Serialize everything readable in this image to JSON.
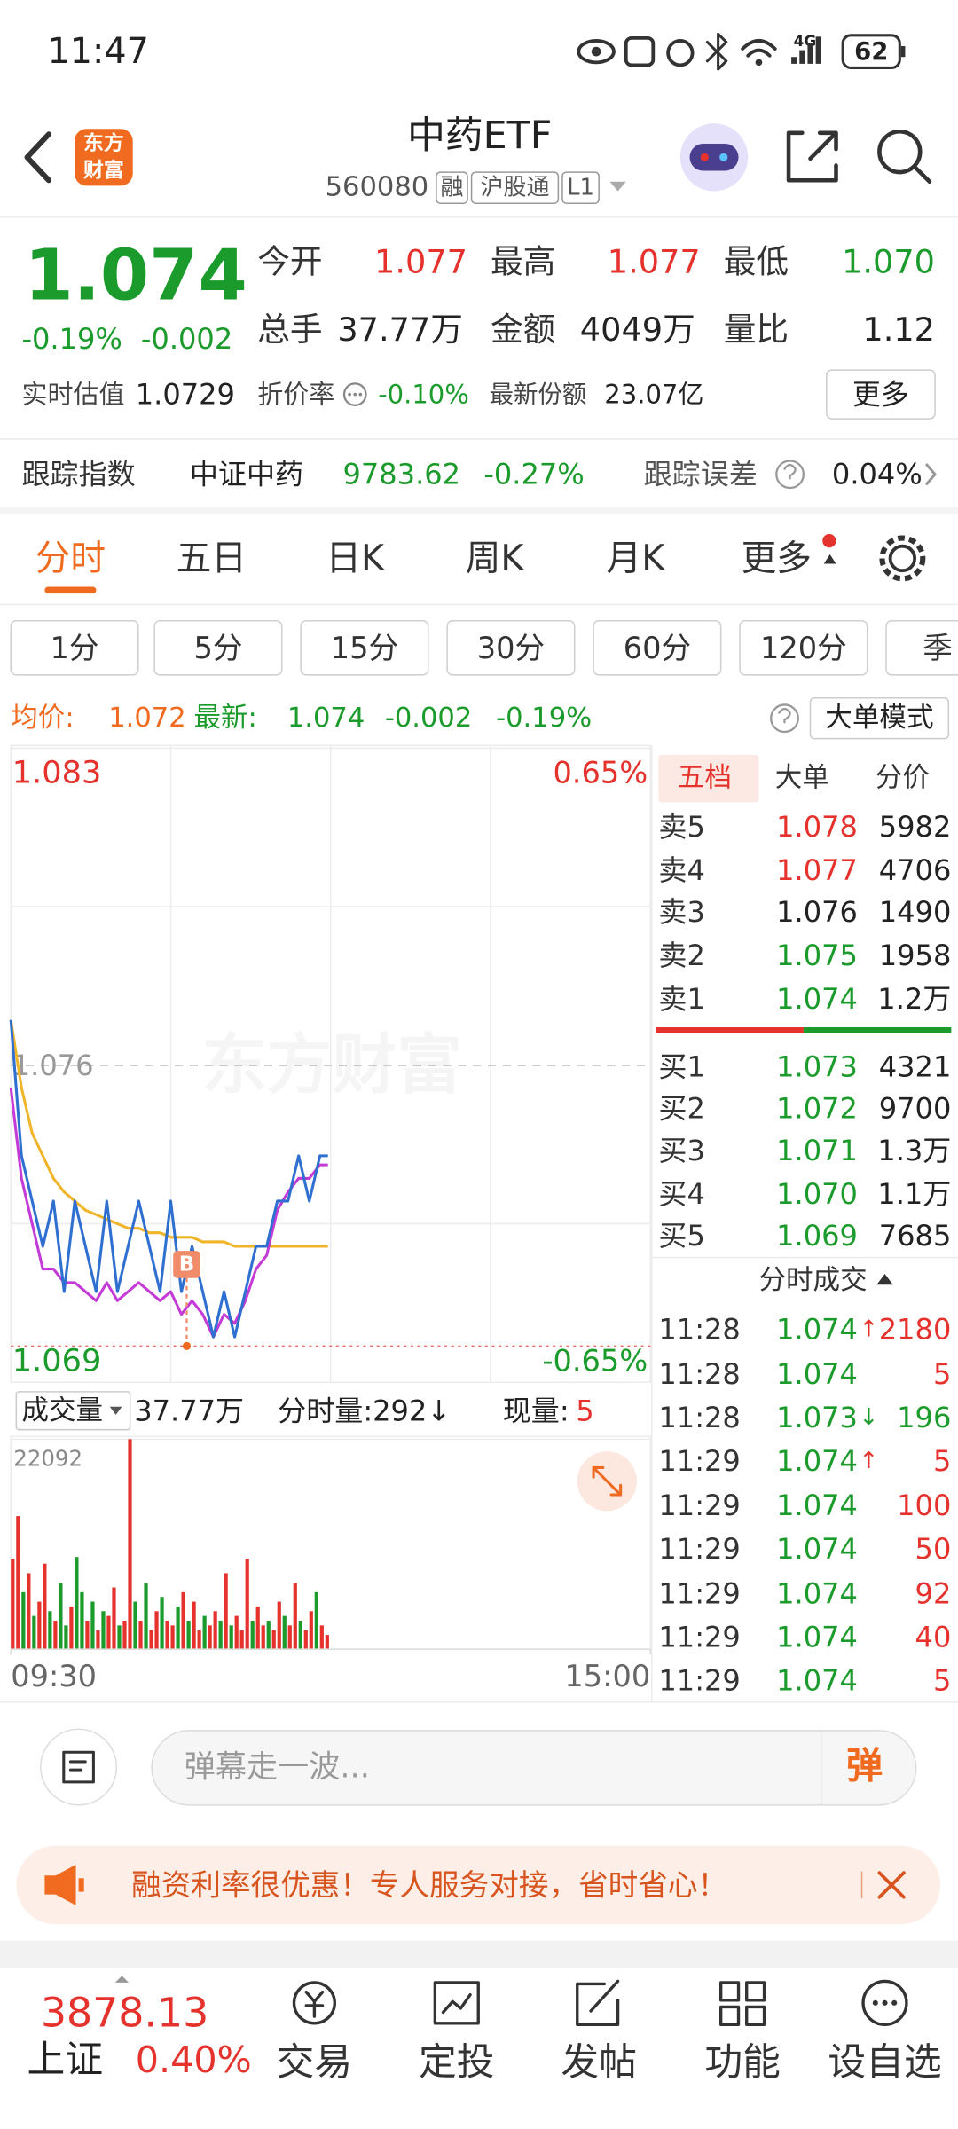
{
  "status_bar": {
    "time": "11:47",
    "network": "4G",
    "battery": "62"
  },
  "header": {
    "logo": [
      "东方",
      "财富"
    ],
    "title": "中药ETF",
    "code": "560080",
    "tags": [
      "融",
      "沪股通",
      "L1"
    ]
  },
  "quote": {
    "price": "1.074",
    "change_pct": "-0.19%",
    "change": "-0.002",
    "stats": [
      [
        "今开",
        "1.077"
      ],
      [
        "最高",
        "1.077"
      ],
      [
        "最低",
        "1.070"
      ],
      [
        "总手",
        "37.77万"
      ],
      [
        "金额",
        "4049万"
      ],
      [
        "量比",
        "1.12"
      ]
    ],
    "estimate_label": "实时估值",
    "estimate": "1.0729",
    "discount_label": "折价率",
    "discount": "-0.10%",
    "shares_label": "最新份额",
    "shares": "23.07亿",
    "more": "更多"
  },
  "tracking": {
    "label": "跟踪指数",
    "index": "中证中药",
    "value": "9783.62",
    "change": "-0.27%",
    "error_label": "跟踪误差",
    "error": "0.04%"
  },
  "tabs": [
    "分时",
    "五日",
    "日K",
    "周K",
    "月K",
    "更多"
  ],
  "intervals": [
    "1分",
    "5分",
    "15分",
    "30分",
    "60分",
    "120分",
    "季"
  ],
  "summary": {
    "avg_label": "均价:",
    "avg": "1.072",
    "latest_label": "最新:",
    "latest": "1.074",
    "change": "-0.002",
    "change_pct": "-0.19%",
    "mode": "大单模式"
  },
  "watermark": "东方财富",
  "chart_data": [
    {
      "type": "line",
      "x": [
        0,
        4,
        8,
        12,
        16,
        20,
        24,
        28,
        32,
        36,
        40,
        44,
        48,
        52,
        56,
        60,
        64,
        68,
        72,
        76,
        80,
        84,
        88,
        92,
        96,
        100,
        104,
        108,
        112,
        116,
        119
      ],
      "series": [
        {
          "color": "#2f6fd0",
          "values": [
            1.077,
            1.074,
            1.073,
            1.072,
            1.073,
            1.071,
            1.073,
            1.072,
            1.071,
            1.073,
            1.071,
            1.072,
            1.073,
            1.072,
            1.071,
            1.073,
            1.071,
            1.072,
            1.071,
            1.07,
            1.071,
            1.07,
            1.071,
            1.072,
            1.072,
            1.073,
            1.073,
            1.074,
            1.073,
            1.074,
            1.074
          ]
        },
        {
          "color": "#f0b429",
          "values": [
            1.077,
            1.0755,
            1.0745,
            1.074,
            1.0735,
            1.0732,
            1.073,
            1.0728,
            1.0727,
            1.0726,
            1.0725,
            1.0724,
            1.0724,
            1.0723,
            1.0723,
            1.0722,
            1.0722,
            1.0722,
            1.0721,
            1.0721,
            1.0721,
            1.072,
            1.072,
            1.072,
            1.072,
            1.072,
            1.072,
            1.072,
            1.072,
            1.072,
            1.072
          ]
        },
        {
          "color": "#c43ad6",
          "values": [
            1.0755,
            1.0735,
            1.0725,
            1.0715,
            1.0715,
            1.0712,
            1.0712,
            1.071,
            1.0708,
            1.0712,
            1.0708,
            1.071,
            1.0712,
            1.071,
            1.0708,
            1.071,
            1.0705,
            1.0708,
            1.0705,
            1.07,
            1.0705,
            1.0703,
            1.0708,
            1.0715,
            1.0718,
            1.0728,
            1.0732,
            1.0735,
            1.0735,
            1.0738,
            1.0738
          ]
        }
      ],
      "xlim": [
        0,
        240
      ],
      "ylim": [
        1.069,
        1.083
      ],
      "yticks": [
        1.069,
        1.076,
        1.083
      ],
      "y2lim": [
        -0.65,
        0.65
      ],
      "y2ticks": [
        {
          "value": -0.65,
          "label": "-0.65%"
        },
        {
          "value": 0.65,
          "label": "0.65%"
        }
      ],
      "annotations": [
        {
          "label": "B",
          "x": 66,
          "y": 1.0716
        }
      ],
      "reference_lines": [
        1.0698
      ]
    },
    {
      "type": "bar",
      "x": [
        0,
        2,
        4,
        6,
        8,
        10,
        12,
        14,
        16,
        18,
        20,
        22,
        24,
        26,
        28,
        30,
        32,
        34,
        36,
        38,
        40,
        42,
        44,
        46,
        48,
        50,
        52,
        54,
        56,
        58,
        60,
        62,
        64,
        66,
        68,
        70,
        72,
        74,
        76,
        78,
        80,
        82,
        84,
        86,
        88,
        90,
        92,
        94,
        96,
        98,
        100,
        102,
        104,
        106,
        108,
        110,
        112,
        114,
        116,
        118
      ],
      "values": [
        9500,
        14000,
        6000,
        8000,
        3500,
        5000,
        9000,
        4000,
        3000,
        7000,
        2500,
        4500,
        9700,
        6000,
        3000,
        5000,
        2000,
        4000,
        3500,
        6500,
        2500,
        3000,
        22092,
        5000,
        3000,
        7000,
        2000,
        4000,
        5500,
        3000,
        2500,
        4500,
        6000,
        3000,
        5000,
        2000,
        3500,
        2500,
        4000,
        3000,
        8000,
        2500,
        3500,
        2000,
        9500,
        3000,
        4500,
        2500,
        3000,
        2000,
        5000,
        3500,
        2500,
        7000,
        3000,
        2000,
        4000,
        6000,
        2500,
        1500
      ],
      "colors": [
        "#e5322d",
        "#e5322d",
        "#1b9b2b",
        "#e5322d",
        "#1b9b2b",
        "#e5322d",
        "#e5322d",
        "#1b9b2b",
        "#e5322d",
        "#1b9b2b",
        "#1b9b2b",
        "#e5322d",
        "#1b9b2b",
        "#1b9b2b",
        "#e5322d",
        "#1b9b2b",
        "#e5322d",
        "#1b9b2b",
        "#e5322d",
        "#e5322d",
        "#1b9b2b",
        "#e5322d",
        "#e5322d",
        "#1b9b2b",
        "#e5322d",
        "#1b9b2b",
        "#e5322d",
        "#e5322d",
        "#1b9b2b",
        "#e5322d",
        "#e5322d",
        "#1b9b2b",
        "#e5322d",
        "#1b9b2b",
        "#e5322d",
        "#e5322d",
        "#1b9b2b",
        "#e5322d",
        "#e5322d",
        "#1b9b2b",
        "#e5322d",
        "#1b9b2b",
        "#e5322d",
        "#e5322d",
        "#e5322d",
        "#1b9b2b",
        "#e5322d",
        "#e5322d",
        "#1b9b2b",
        "#e5322d",
        "#e5322d",
        "#1b9b2b",
        "#e5322d",
        "#e5322d",
        "#1b9b2b",
        "#e5322d",
        "#e5322d",
        "#1b9b2b",
        "#e5322d",
        "#e5322d"
      ],
      "xlim": [
        0,
        240
      ],
      "xticks": [
        {
          "value": 0,
          "label": "09:30"
        },
        {
          "value": 240,
          "label": "15:00"
        }
      ],
      "ylim": [
        0,
        22092
      ],
      "yticks": [
        22092
      ]
    }
  ],
  "volume_bar": {
    "label": "成交量",
    "total": "37.77万",
    "minute": "分时量:292↓",
    "current_label": "现量:",
    "current": "5"
  },
  "order_book": {
    "tabs": [
      "五档",
      "大单",
      "分价"
    ],
    "asks": [
      {
        "label": "卖5",
        "price": "1.078",
        "volume": "5982"
      },
      {
        "label": "卖4",
        "price": "1.077",
        "volume": "4706"
      },
      {
        "label": "卖3",
        "price": "1.076",
        "volume": "1490"
      },
      {
        "label": "卖2",
        "price": "1.075",
        "volume": "1958"
      },
      {
        "label": "卖1",
        "price": "1.074",
        "volume": "1.2万"
      }
    ],
    "bids": [
      {
        "label": "买1",
        "price": "1.073",
        "volume": "4321"
      },
      {
        "label": "买2",
        "price": "1.072",
        "volume": "9700"
      },
      {
        "label": "买3",
        "price": "1.071",
        "volume": "1.3万"
      },
      {
        "label": "买4",
        "price": "1.070",
        "volume": "1.1万"
      },
      {
        "label": "买5",
        "price": "1.069",
        "volume": "7685"
      }
    ]
  },
  "trades": {
    "title": "分时成交",
    "rows": [
      {
        "time": "11:28",
        "price": "1.074",
        "dir": "↑",
        "volume": "2180",
        "color": "#e5322d"
      },
      {
        "time": "11:28",
        "price": "1.074",
        "volume": "5",
        "color": "#e5322d"
      },
      {
        "time": "11:28",
        "price": "1.073",
        "dir": "↓",
        "volume": "196",
        "color": "#1b9b2b"
      },
      {
        "time": "11:29",
        "price": "1.074",
        "dir": "↑",
        "volume": "5",
        "color": "#e5322d"
      },
      {
        "time": "11:29",
        "price": "1.074",
        "volume": "100",
        "color": "#e5322d"
      },
      {
        "time": "11:29",
        "price": "1.074",
        "volume": "50",
        "color": "#e5322d"
      },
      {
        "time": "11:29",
        "price": "1.074",
        "volume": "92",
        "color": "#e5322d"
      },
      {
        "time": "11:29",
        "price": "1.074",
        "volume": "40",
        "color": "#e5322d"
      },
      {
        "time": "11:29",
        "price": "1.074",
        "volume": "5",
        "color": "#e5322d"
      }
    ]
  },
  "danmaku": {
    "placeholder": "弹幕走一波...",
    "button": "弹"
  },
  "banner": "融资利率很优惠！专人服务对接，省时省心！",
  "bottom_nav": {
    "index_value": "3878.13",
    "index_name": "上证",
    "index_change": "0.40%",
    "items": [
      "交易",
      "定投",
      "发帖",
      "功能",
      "设自选"
    ]
  }
}
